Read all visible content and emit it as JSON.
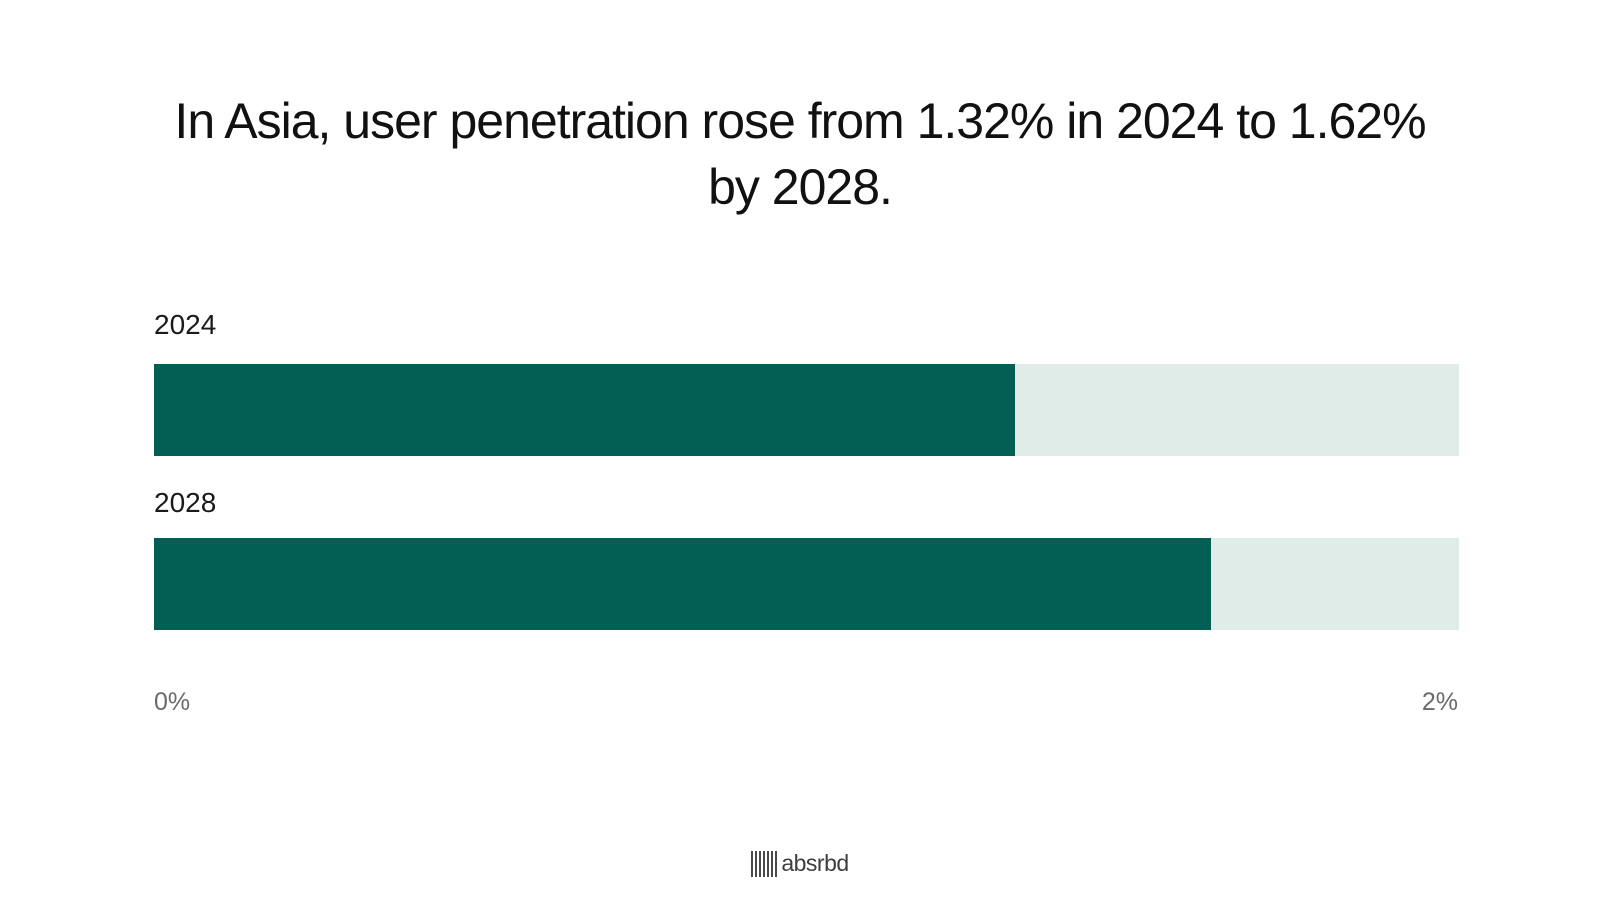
{
  "chart_data": {
    "type": "bar",
    "orientation": "horizontal",
    "title": "In Asia, user penetration rose from 1.32% in 2024 to 1.62% by 2028.",
    "categories": [
      "2024",
      "2028"
    ],
    "values": [
      1.32,
      1.62
    ],
    "unit": "%",
    "xlim": [
      0,
      2
    ],
    "x_tick_labels": [
      "0%",
      "2%"
    ],
    "xlabel": "",
    "ylabel": "",
    "grid": false,
    "colors": {
      "fill": "#035F54",
      "track": "#E0ECE8"
    }
  },
  "footer": {
    "logo_text": "absrbd"
  }
}
